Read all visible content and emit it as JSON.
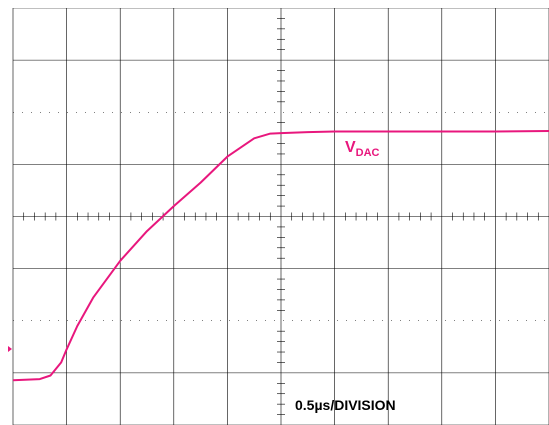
{
  "chart_data": {
    "type": "line",
    "title": "",
    "xlabel": "",
    "ylabel": "",
    "grid": true,
    "x_divisions": 10,
    "y_divisions": 8,
    "series": [
      {
        "name": "VDAC",
        "x_div": [
          0.0,
          0.5,
          0.7,
          0.9,
          1.0,
          1.2,
          1.5,
          2.0,
          2.5,
          3.0,
          3.5,
          4.0,
          4.5,
          4.8,
          5.0,
          5.5,
          6.0,
          7.0,
          8.0,
          9.0,
          10.0
        ],
        "y_div": [
          0.86,
          0.88,
          0.95,
          1.2,
          1.45,
          1.9,
          2.45,
          3.15,
          3.72,
          4.2,
          4.65,
          5.15,
          5.5,
          5.59,
          5.6,
          5.62,
          5.63,
          5.63,
          5.63,
          5.63,
          5.64
        ]
      }
    ]
  },
  "labels": {
    "signal_main": "V",
    "signal_sub": "DAC",
    "timebase": "0.5µs/DIVISION"
  },
  "colors": {
    "trace": "#e8177d",
    "grid": "#000000",
    "background": "#ffffff"
  }
}
